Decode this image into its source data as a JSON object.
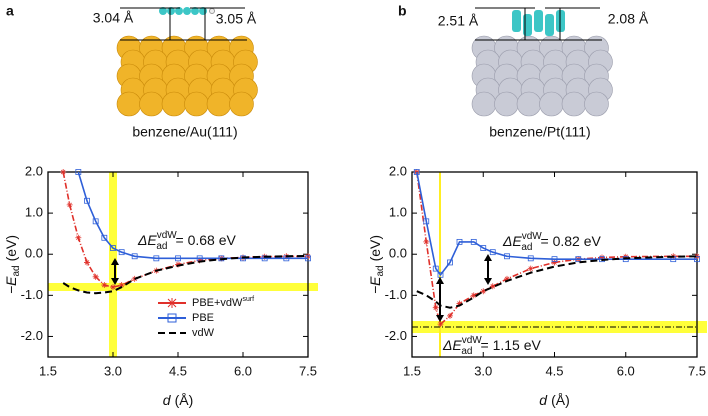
{
  "chart_data": [
    {
      "type": "line",
      "panel_label": "a",
      "caption": "benzene/Au(111)",
      "distance_labels": [
        "3.04 Å",
        "3.05 Å"
      ],
      "xlabel": {
        "symbol": "d",
        "unit": "(Å)"
      },
      "ylabel": {
        "symbol": "−E",
        "sub": "ad",
        "unit": "(eV)"
      },
      "xlim": [
        1.5,
        7.5
      ],
      "xticks": [
        1.5,
        {
          "value": 3,
          "label": "3.0"
        },
        4.5,
        {
          "value": 6,
          "label": "6.0"
        },
        7.5
      ],
      "ylim": [
        -2.5,
        2.0
      ],
      "yticks": [
        {
          "value": 2,
          "label": "2.0"
        },
        {
          "value": 1,
          "label": "1.0"
        },
        {
          "value": 0,
          "label": "0.0"
        },
        {
          "value": -1,
          "label": "-1.0"
        },
        {
          "value": -2,
          "label": "-2.0"
        }
      ],
      "legend": "lower right",
      "annotations": [
        {
          "symbol": "ΔE",
          "sup": "vdW",
          "sub": "ad",
          "text": "= 0.68 eV"
        }
      ],
      "x": [
        1.85,
        2.0,
        2.2,
        2.4,
        2.6,
        2.8,
        3.0,
        3.2,
        3.5,
        4.0,
        4.5,
        5.0,
        5.5,
        6.0,
        6.5,
        7.0,
        7.5
      ],
      "series": [
        {
          "name": "PBE+vdW",
          "name_sup": "surf",
          "color": "#e0302a",
          "values": [
            2.0,
            1.2,
            0.4,
            -0.2,
            -0.55,
            -0.75,
            -0.8,
            -0.75,
            -0.6,
            -0.4,
            -0.25,
            -0.15,
            -0.1,
            -0.08,
            -0.06,
            -0.05,
            -0.05
          ]
        },
        {
          "name": "PBE",
          "color": "#2e5fd8",
          "values": [
            null,
            null,
            2.0,
            1.3,
            0.8,
            0.4,
            0.15,
            0.05,
            -0.05,
            -0.1,
            -0.1,
            -0.1,
            -0.1,
            -0.1,
            -0.1,
            -0.1,
            -0.1
          ]
        },
        {
          "name": "vdW",
          "color": "#000000",
          "values": [
            -0.7,
            -0.8,
            -0.88,
            -0.93,
            -0.95,
            -0.93,
            -0.9,
            -0.8,
            -0.6,
            -0.4,
            -0.28,
            -0.18,
            -0.12,
            -0.08,
            -0.06,
            -0.05,
            -0.04
          ]
        }
      ]
    },
    {
      "type": "line",
      "panel_label": "b",
      "caption": "benzene/Pt(111)",
      "distance_labels": [
        "2.51 Å",
        "2.08 Å"
      ],
      "xlabel": {
        "symbol": "d",
        "unit": "(Å)"
      },
      "ylabel": {
        "symbol": "−E",
        "sub": "ad",
        "unit": "(eV)"
      },
      "xlim": [
        1.5,
        7.5
      ],
      "xticks": [
        1.5,
        {
          "value": 3,
          "label": "3.0"
        },
        4.5,
        {
          "value": 6,
          "label": "6.0"
        },
        7.5
      ],
      "ylim": [
        -2.5,
        2.0
      ],
      "yticks": [
        {
          "value": 2,
          "label": "2.0"
        },
        {
          "value": 1,
          "label": "1.0"
        },
        {
          "value": 0,
          "label": "0.0"
        },
        {
          "value": -1,
          "label": "-1.0"
        },
        {
          "value": -2,
          "label": "-2.0"
        }
      ],
      "annotations": [
        {
          "symbol": "ΔE",
          "sup": "vdW",
          "sub": "ad",
          "text": "= 0.82 eV"
        },
        {
          "symbol": "ΔE",
          "sup": "vdW",
          "sub": "ad",
          "text": "= 1.15 eV"
        }
      ],
      "x": [
        1.6,
        1.8,
        2.0,
        2.1,
        2.3,
        2.5,
        2.8,
        3.0,
        3.2,
        3.5,
        4.0,
        4.5,
        5.0,
        5.5,
        6.0,
        7.0,
        7.5
      ],
      "series": [
        {
          "name": "PBE+vdW",
          "name_sup": "surf",
          "color": "#e0302a",
          "values": [
            2.0,
            0.3,
            -1.3,
            -1.7,
            -1.5,
            -1.2,
            -1.0,
            -0.9,
            -0.78,
            -0.6,
            -0.35,
            -0.2,
            -0.12,
            -0.08,
            -0.06,
            -0.05,
            -0.05
          ]
        },
        {
          "name": "PBE",
          "color": "#2e5fd8",
          "values": [
            2.0,
            0.8,
            -0.35,
            -0.5,
            -0.2,
            0.3,
            0.3,
            0.15,
            0.05,
            -0.05,
            -0.1,
            -0.12,
            -0.12,
            -0.12,
            -0.12,
            -0.12,
            -0.12
          ]
        },
        {
          "name": "vdW",
          "color": "#000000",
          "values": [
            -0.9,
            -1.0,
            -1.15,
            -1.25,
            -1.3,
            -1.25,
            -1.05,
            -0.9,
            -0.8,
            -0.65,
            -0.45,
            -0.3,
            -0.2,
            -0.14,
            -0.1,
            -0.06,
            -0.05
          ]
        }
      ]
    }
  ]
}
